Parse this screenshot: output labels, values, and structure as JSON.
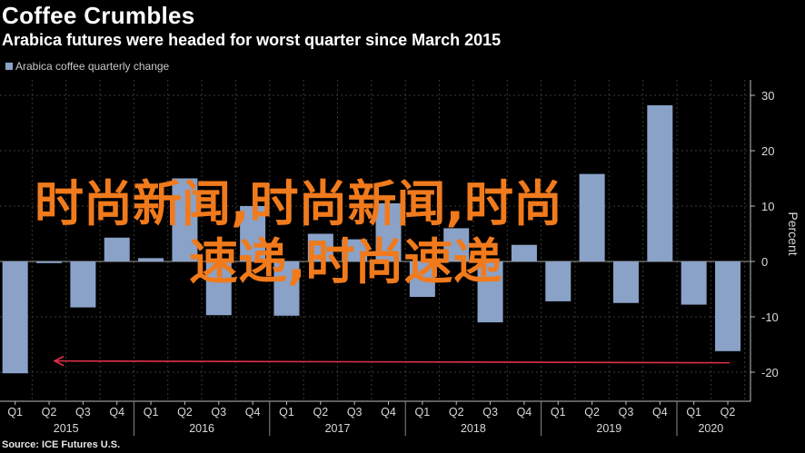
{
  "title": "Coffee Crumbles",
  "subtitle": "Arabica futures were headed for worst quarter since March 2015",
  "source": "Source: ICE Futures U.S.",
  "watermark": {
    "line1": "时尚新闻,时尚新闻,时尚",
    "line2": "速递,时尚速递"
  },
  "colors": {
    "bar": "#8aa2c8",
    "arrow": "#e0304a",
    "grid": "#3a3a3a",
    "background": "#000000"
  },
  "chart_data": {
    "type": "bar",
    "legend": "Arabica coffee quarterly change",
    "ylabel": "Percent",
    "ylim": [
      -20,
      30
    ],
    "yticks": [
      30,
      20,
      10,
      0,
      -10,
      -20
    ],
    "grid": true,
    "categories": [
      "Q1",
      "Q2",
      "Q3",
      "Q4",
      "Q1",
      "Q2",
      "Q3",
      "Q4",
      "Q1",
      "Q2",
      "Q3",
      "Q4",
      "Q1",
      "Q2",
      "Q3",
      "Q4",
      "Q1",
      "Q2",
      "Q3",
      "Q4",
      "Q1",
      "Q2"
    ],
    "years": [
      {
        "label": "2015",
        "start": 0,
        "end": 3
      },
      {
        "label": "2016",
        "start": 4,
        "end": 7
      },
      {
        "label": "2017",
        "start": 8,
        "end": 11
      },
      {
        "label": "2018",
        "start": 12,
        "end": 15
      },
      {
        "label": "2019",
        "start": 16,
        "end": 19
      },
      {
        "label": "2020",
        "start": 20,
        "end": 21
      }
    ],
    "values": [
      -20.2,
      -0.3,
      -8.3,
      4.3,
      0.6,
      15.0,
      -9.7,
      10.0,
      -9.8,
      5.0,
      4.0,
      10.5,
      -6.4,
      6.0,
      -11.0,
      3.0,
      -7.2,
      15.8,
      -7.5,
      28.2,
      -7.8,
      -16.2
    ],
    "annotation": {
      "type": "arrow",
      "from_index": 21,
      "to_index": 1,
      "y": -18.3
    }
  }
}
